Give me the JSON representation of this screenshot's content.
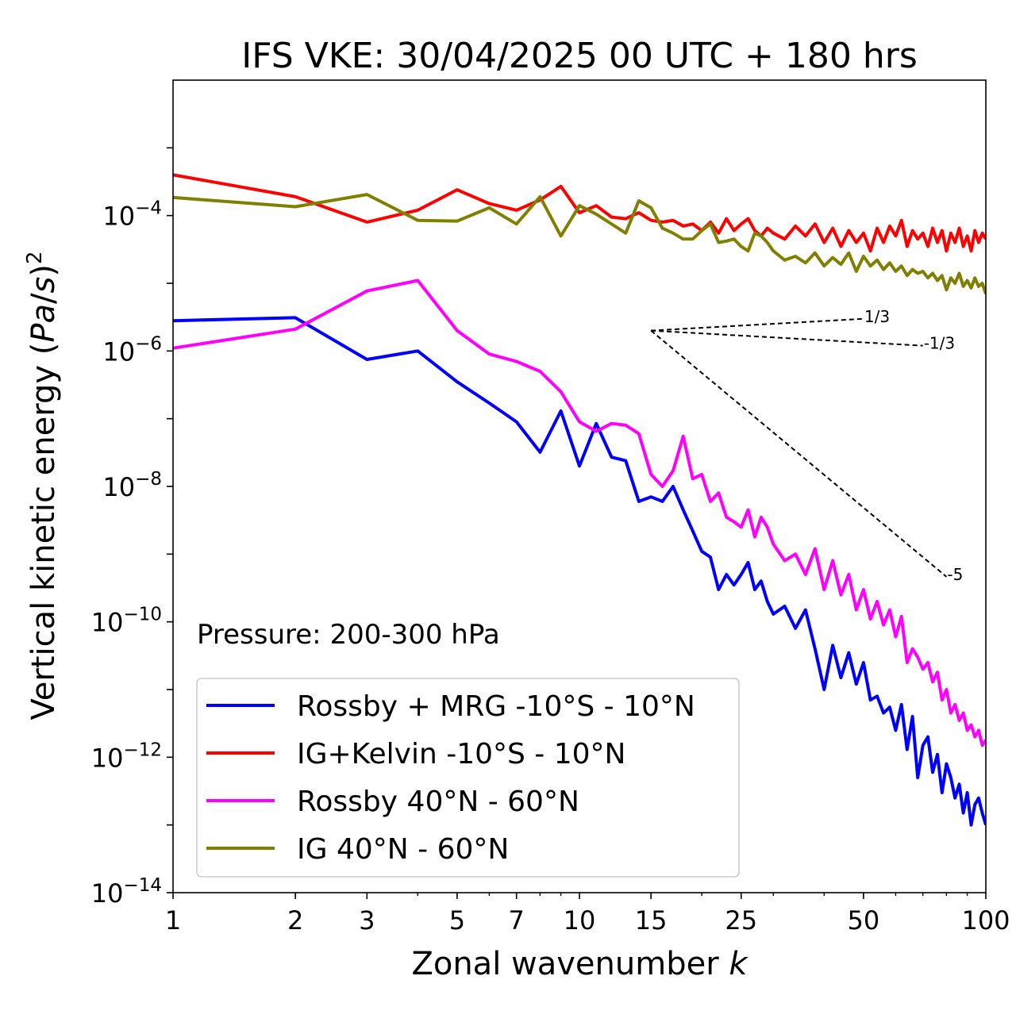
{
  "chart_data": {
    "type": "line",
    "title": "IFS VKE: 30/04/2025 00 UTC + 180 hrs",
    "xlabel": "Zonal wavenumber k",
    "ylabel": "Vertical kinetic energy (Pa/s)²",
    "x_scale": "log",
    "y_scale": "log",
    "xlim": [
      1,
      100
    ],
    "ylim": [
      1e-14,
      0.01
    ],
    "x_ticks": [
      1,
      2,
      3,
      5,
      7,
      10,
      15,
      25,
      50,
      100
    ],
    "x_tick_labels": [
      "1",
      "2",
      "3",
      "5",
      "7",
      "10",
      "15",
      "25",
      "50",
      "100"
    ],
    "y_ticks": [
      1e-14,
      1e-12,
      1e-10,
      1e-08,
      1e-06,
      0.0001
    ],
    "y_tick_bases": [
      "10",
      "10",
      "10",
      "10",
      "10",
      "10"
    ],
    "y_tick_exponents": [
      "−14",
      "−12",
      "−10",
      "−8",
      "−6",
      "−4"
    ],
    "grid": false,
    "legend_position": "lower-left",
    "annotation": "Pressure: 200-300 hPa",
    "series": [
      {
        "name": "Rossby + MRG -10°S - 10°N",
        "color": "#0000ff",
        "x": [
          1,
          2,
          3,
          4,
          5,
          6,
          7,
          8,
          9,
          10,
          11,
          12,
          13,
          14,
          15,
          16,
          17,
          18,
          19,
          20,
          21,
          22,
          23,
          24,
          25,
          26,
          27,
          28,
          29,
          30,
          32,
          34,
          36,
          38,
          40,
          42,
          44,
          46,
          48,
          50,
          52,
          54,
          56,
          58,
          60,
          62,
          64,
          66,
          68,
          70,
          72,
          74,
          76,
          78,
          80,
          82,
          84,
          86,
          88,
          90,
          92,
          94,
          96,
          98,
          100
        ],
        "y": [
          2.8e-06,
          3.1e-06,
          7.5e-07,
          1e-06,
          3.5e-07,
          1.7e-07,
          9e-08,
          3.2e-08,
          1.3e-07,
          2e-08,
          8.5e-08,
          2.7e-08,
          2.4e-08,
          6e-09,
          7e-09,
          6e-09,
          1e-08,
          4.5e-09,
          2.2e-09,
          1.1e-09,
          9e-10,
          3e-10,
          5e-10,
          3.5e-10,
          5e-10,
          7.5e-10,
          3e-10,
          4e-10,
          2e-10,
          1.3e-10,
          1.7e-10,
          8e-11,
          1.5e-10,
          4e-11,
          1e-11,
          4.5e-11,
          1.5e-11,
          3.5e-11,
          1.2e-11,
          2.5e-11,
          7e-12,
          8e-12,
          4.5e-12,
          5.5e-12,
          2.5e-12,
          6e-12,
          1.3e-12,
          4e-12,
          5e-13,
          1.5e-12,
          2e-12,
          6e-13,
          1.1e-12,
          3e-13,
          8e-13,
          5e-13,
          2.5e-13,
          4e-13,
          1.5e-13,
          3e-13,
          1e-13,
          2e-13,
          2.5e-13,
          1.5e-13,
          1e-13
        ]
      },
      {
        "name": "IG+Kelvin -10°S - 10°N",
        "color": "#ff0000",
        "x": [
          1,
          2,
          3,
          4,
          5,
          6,
          7,
          8,
          9,
          10,
          11,
          12,
          13,
          14,
          15,
          16,
          17,
          18,
          19,
          20,
          21,
          22,
          23,
          24,
          25,
          26,
          27,
          28,
          29,
          30,
          32,
          34,
          36,
          38,
          40,
          42,
          44,
          46,
          48,
          50,
          52,
          54,
          56,
          58,
          60,
          62,
          64,
          66,
          68,
          70,
          72,
          74,
          76,
          78,
          80,
          82,
          84,
          86,
          88,
          90,
          92,
          94,
          96,
          98,
          100
        ],
        "y": [
          0.0004,
          0.00019,
          8e-05,
          0.00012,
          0.00024,
          0.00015,
          0.00012,
          0.00017,
          0.00027,
          0.00011,
          0.00014,
          9.5e-05,
          9e-05,
          0.00011,
          8.5e-05,
          8e-05,
          8.5e-05,
          7e-05,
          7.5e-05,
          6e-05,
          8e-05,
          5.5e-05,
          9e-05,
          6e-05,
          7.5e-05,
          9e-05,
          6e-05,
          5e-05,
          6.5e-05,
          5.5e-05,
          4.5e-05,
          7e-05,
          5e-05,
          7.5e-05,
          4e-05,
          6.5e-05,
          3.5e-05,
          6e-05,
          4e-05,
          5.5e-05,
          3e-05,
          6.5e-05,
          4e-05,
          7e-05,
          5e-05,
          8.5e-05,
          3.5e-05,
          6e-05,
          4.5e-05,
          5.5e-05,
          3.5e-05,
          6.5e-05,
          4e-05,
          6e-05,
          3e-05,
          5.5e-05,
          4e-05,
          6.5e-05,
          3.5e-05,
          5e-05,
          3e-05,
          6e-05,
          4e-05,
          5.5e-05,
          4.5e-05
        ]
      },
      {
        "name": "Rossby 40°N - 60°N",
        "color": "#ff00ff",
        "x": [
          1,
          2,
          3,
          4,
          5,
          6,
          7,
          8,
          9,
          10,
          11,
          12,
          13,
          14,
          15,
          16,
          17,
          18,
          19,
          20,
          21,
          22,
          23,
          24,
          25,
          26,
          27,
          28,
          29,
          30,
          32,
          34,
          36,
          38,
          40,
          42,
          44,
          46,
          48,
          50,
          52,
          54,
          56,
          58,
          60,
          62,
          64,
          66,
          68,
          70,
          72,
          74,
          76,
          78,
          80,
          82,
          84,
          86,
          88,
          90,
          92,
          94,
          96,
          98,
          100
        ],
        "y": [
          1.1e-06,
          2.1e-06,
          7.7e-06,
          1.1e-05,
          2e-06,
          9e-07,
          7e-07,
          5e-07,
          2.5e-07,
          9e-08,
          6.5e-08,
          8.5e-08,
          8e-08,
          6e-08,
          1.5e-08,
          1e-08,
          1.7e-08,
          5.5e-08,
          1.3e-08,
          1.5e-08,
          6e-09,
          8e-09,
          3.5e-09,
          3e-09,
          2.5e-09,
          4.5e-09,
          1.8e-09,
          3.5e-09,
          2.5e-09,
          1.4e-09,
          8e-10,
          1e-09,
          5e-10,
          1.2e-09,
          3e-10,
          8e-10,
          2.5e-10,
          5e-10,
          1.5e-10,
          3e-10,
          1.1e-10,
          2e-10,
          9e-11,
          1.5e-10,
          6e-11,
          1.2e-10,
          2.5e-11,
          4e-11,
          3e-11,
          2e-11,
          2.5e-11,
          1.3e-11,
          1.8e-11,
          7e-12,
          1e-11,
          4.5e-12,
          6e-12,
          3.5e-12,
          4.5e-12,
          2.5e-12,
          3e-12,
          2e-12,
          2.5e-12,
          1.5e-12,
          1.8e-12
        ]
      },
      {
        "name": "IG 40°N - 60°N",
        "color": "#808000",
        "x": [
          1,
          2,
          3,
          4,
          5,
          6,
          7,
          8,
          9,
          10,
          11,
          12,
          13,
          14,
          15,
          16,
          17,
          18,
          19,
          20,
          21,
          22,
          23,
          24,
          25,
          26,
          27,
          28,
          29,
          30,
          32,
          34,
          36,
          38,
          40,
          42,
          44,
          46,
          48,
          50,
          52,
          54,
          56,
          58,
          60,
          62,
          64,
          66,
          68,
          70,
          72,
          74,
          76,
          78,
          80,
          82,
          84,
          86,
          88,
          90,
          92,
          94,
          96,
          98,
          100
        ],
        "y": [
          0.000185,
          0.000135,
          0.000205,
          8.5e-05,
          8.3e-05,
          0.00013,
          7.5e-05,
          0.00019,
          5e-05,
          0.00014,
          0.000105,
          7.5e-05,
          5.5e-05,
          0.000165,
          0.00013,
          6.5e-05,
          5.5e-05,
          4.5e-05,
          4.5e-05,
          6e-05,
          7.5e-05,
          4e-05,
          4.2e-05,
          4.5e-05,
          3.5e-05,
          3e-05,
          5.5e-05,
          5e-05,
          4e-05,
          3e-05,
          2.2e-05,
          2.5e-05,
          2e-05,
          2.8e-05,
          1.8e-05,
          2.4e-05,
          1.9e-05,
          2.8e-05,
          1.5e-05,
          2.5e-05,
          1.8e-05,
          2.2e-05,
          1.6e-05,
          2e-05,
          1.5e-05,
          1.8e-05,
          1.3e-05,
          1.6e-05,
          1.4e-05,
          1.5e-05,
          1.2e-05,
          1.4e-05,
          1.1e-05,
          1.3e-05,
          8e-06,
          1.2e-05,
          1e-05,
          1.4e-05,
          9e-06,
          1.1e-05,
          8.5e-06,
          1.2e-05,
          9e-06,
          1e-05,
          7e-06
        ]
      }
    ],
    "reference_lines": [
      {
        "label": "1/3",
        "slope": 0.3333,
        "x0": 15,
        "y0": 2e-06,
        "x1": 50
      },
      {
        "label": "-1/3",
        "slope": -0.3333,
        "x0": 15,
        "y0": 2e-06,
        "x1": 70
      },
      {
        "label": "-5",
        "slope": -5,
        "x0": 15,
        "y0": 2e-06,
        "x1": 80
      }
    ]
  }
}
